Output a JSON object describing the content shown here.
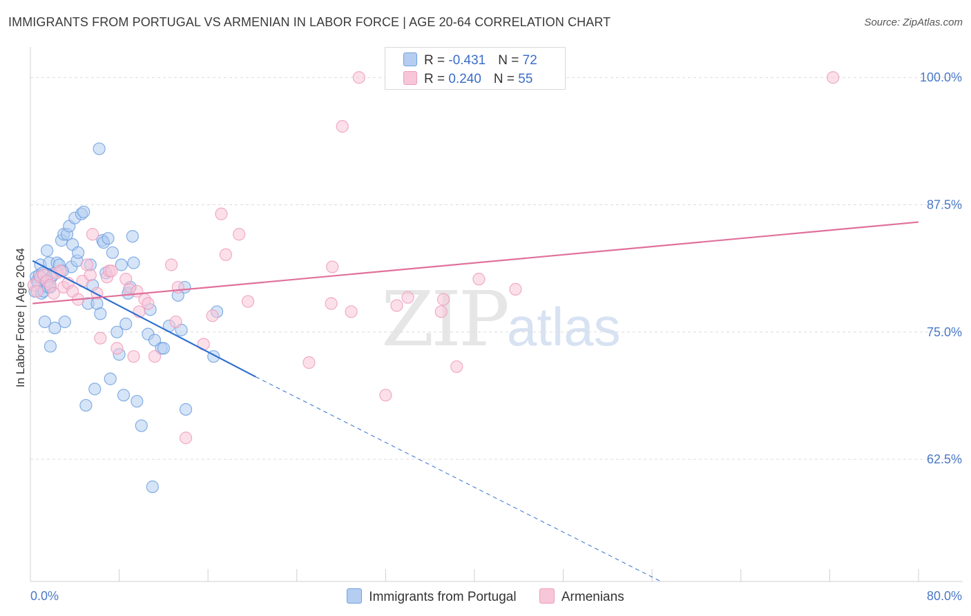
{
  "header": {
    "title": "IMMIGRANTS FROM PORTUGAL VS ARMENIAN IN LABOR FORCE | AGE 20-64 CORRELATION CHART",
    "source": "Source: ZipAtlas.com"
  },
  "watermark": {
    "zip": "ZIP",
    "atlas": "atlas"
  },
  "legend": {
    "rows": [
      {
        "r_label": "R = ",
        "r_value": "-0.431",
        "n_label": "N = ",
        "n_value": "72"
      },
      {
        "r_label": "R = ",
        "r_value": " 0.240",
        "n_label": "N = ",
        "n_value": "55"
      }
    ]
  },
  "chart_data": {
    "type": "scatter",
    "title": "IMMIGRANTS FROM PORTUGAL VS ARMENIAN IN LABOR FORCE | AGE 20-64 CORRELATION CHART",
    "xlabel": "",
    "ylabel": "In Labor Force | Age 20-64",
    "xlim": [
      0,
      80
    ],
    "ylim": [
      50.5,
      103
    ],
    "x_tick_labels": [
      "0.0%",
      "80.0%"
    ],
    "y_ticks": [
      62.5,
      75.0,
      87.5,
      100.0
    ],
    "y_tick_labels": [
      "62.5%",
      "75.0%",
      "87.5%",
      "100.0%"
    ],
    "grid": true,
    "legend_position": "top-center",
    "series": [
      {
        "name": "Immigrants from Portugal",
        "color": "#6fa0e0",
        "fill": "#b5cdf0",
        "r": -0.431,
        "n": 72,
        "trend": {
          "x0": 0.2,
          "y0": 82.0,
          "x1": 20.3,
          "y1": 70.6,
          "dash_to_x": 56.8,
          "dash_to_y": 50.5
        },
        "points": [
          [
            0.4,
            79.0
          ],
          [
            0.5,
            80.4
          ],
          [
            0.6,
            80.0
          ],
          [
            0.7,
            79.8
          ],
          [
            0.8,
            80.6
          ],
          [
            0.9,
            81.6
          ],
          [
            1.0,
            78.8
          ],
          [
            1.1,
            80.8
          ],
          [
            1.2,
            79.0
          ],
          [
            1.3,
            76.0
          ],
          [
            1.4,
            80.0
          ],
          [
            1.5,
            83.0
          ],
          [
            1.6,
            79.4
          ],
          [
            1.7,
            81.8
          ],
          [
            1.8,
            73.6
          ],
          [
            1.9,
            80.4
          ],
          [
            2.0,
            80.6
          ],
          [
            2.2,
            75.4
          ],
          [
            2.4,
            81.8
          ],
          [
            2.6,
            81.6
          ],
          [
            2.8,
            84.0
          ],
          [
            3.0,
            84.6
          ],
          [
            3.1,
            76.0
          ],
          [
            3.3,
            84.6
          ],
          [
            3.5,
            85.4
          ],
          [
            3.7,
            81.4
          ],
          [
            3.8,
            83.6
          ],
          [
            4.0,
            86.2
          ],
          [
            4.2,
            82.0
          ],
          [
            4.3,
            82.8
          ],
          [
            4.6,
            86.6
          ],
          [
            4.8,
            86.8
          ],
          [
            5.0,
            67.8
          ],
          [
            5.2,
            77.8
          ],
          [
            5.4,
            81.6
          ],
          [
            5.6,
            79.6
          ],
          [
            5.8,
            69.4
          ],
          [
            6.0,
            77.8
          ],
          [
            6.2,
            93.0
          ],
          [
            6.3,
            76.8
          ],
          [
            6.5,
            84.0
          ],
          [
            6.6,
            83.8
          ],
          [
            6.8,
            80.8
          ],
          [
            7.0,
            84.2
          ],
          [
            7.2,
            70.4
          ],
          [
            7.4,
            82.8
          ],
          [
            7.8,
            75.0
          ],
          [
            8.0,
            72.8
          ],
          [
            8.2,
            81.6
          ],
          [
            8.4,
            68.8
          ],
          [
            8.6,
            75.8
          ],
          [
            8.8,
            78.8
          ],
          [
            9.0,
            79.4
          ],
          [
            9.2,
            84.4
          ],
          [
            9.3,
            81.8
          ],
          [
            9.6,
            68.2
          ],
          [
            10.0,
            65.8
          ],
          [
            10.6,
            74.8
          ],
          [
            10.8,
            77.2
          ],
          [
            11.0,
            59.8
          ],
          [
            11.2,
            74.2
          ],
          [
            11.8,
            73.4
          ],
          [
            12.0,
            73.4
          ],
          [
            12.5,
            75.6
          ],
          [
            13.3,
            78.6
          ],
          [
            13.6,
            75.2
          ],
          [
            13.9,
            79.4
          ],
          [
            14.0,
            67.4
          ],
          [
            16.5,
            72.6
          ],
          [
            16.8,
            77.0
          ],
          [
            1.8,
            79.4
          ],
          [
            2.9,
            81.0
          ]
        ]
      },
      {
        "name": "Armenians",
        "color": "#ee9cbc",
        "fill": "#f7c6d8",
        "r": 0.24,
        "n": 55,
        "trend": {
          "x0": 0.2,
          "y0": 77.8,
          "x1": 80.0,
          "y1": 85.8
        },
        "points": [
          [
            0.3,
            79.6
          ],
          [
            0.6,
            79.0
          ],
          [
            0.9,
            80.4
          ],
          [
            1.2,
            80.6
          ],
          [
            1.5,
            80.0
          ],
          [
            1.8,
            79.6
          ],
          [
            2.1,
            78.8
          ],
          [
            2.4,
            80.8
          ],
          [
            2.7,
            81.0
          ],
          [
            3.0,
            79.4
          ],
          [
            3.4,
            79.8
          ],
          [
            3.8,
            79.0
          ],
          [
            4.3,
            78.2
          ],
          [
            4.7,
            80.0
          ],
          [
            5.1,
            81.6
          ],
          [
            5.4,
            80.6
          ],
          [
            5.6,
            84.6
          ],
          [
            6.0,
            78.8
          ],
          [
            6.3,
            74.4
          ],
          [
            6.9,
            80.4
          ],
          [
            7.1,
            81.0
          ],
          [
            7.3,
            81.0
          ],
          [
            7.8,
            73.4
          ],
          [
            8.6,
            80.2
          ],
          [
            8.9,
            79.2
          ],
          [
            9.3,
            72.6
          ],
          [
            9.6,
            79.0
          ],
          [
            9.8,
            77.0
          ],
          [
            10.3,
            78.2
          ],
          [
            10.6,
            77.8
          ],
          [
            11.2,
            72.6
          ],
          [
            12.7,
            81.6
          ],
          [
            13.1,
            76.0
          ],
          [
            13.3,
            79.4
          ],
          [
            14.0,
            64.6
          ],
          [
            15.6,
            73.8
          ],
          [
            16.4,
            76.6
          ],
          [
            17.2,
            86.6
          ],
          [
            17.6,
            82.6
          ],
          [
            18.8,
            84.6
          ],
          [
            19.6,
            78.0
          ],
          [
            25.1,
            72.0
          ],
          [
            27.1,
            77.8
          ],
          [
            27.2,
            81.4
          ],
          [
            28.1,
            95.2
          ],
          [
            28.9,
            77.0
          ],
          [
            29.6,
            100.0
          ],
          [
            32.0,
            68.8
          ],
          [
            33.0,
            77.6
          ],
          [
            34.0,
            78.4
          ],
          [
            37.0,
            77.0
          ],
          [
            37.2,
            78.2
          ],
          [
            38.4,
            71.6
          ],
          [
            40.4,
            80.2
          ],
          [
            43.7,
            79.2
          ],
          [
            72.3,
            100.0
          ]
        ]
      }
    ]
  }
}
